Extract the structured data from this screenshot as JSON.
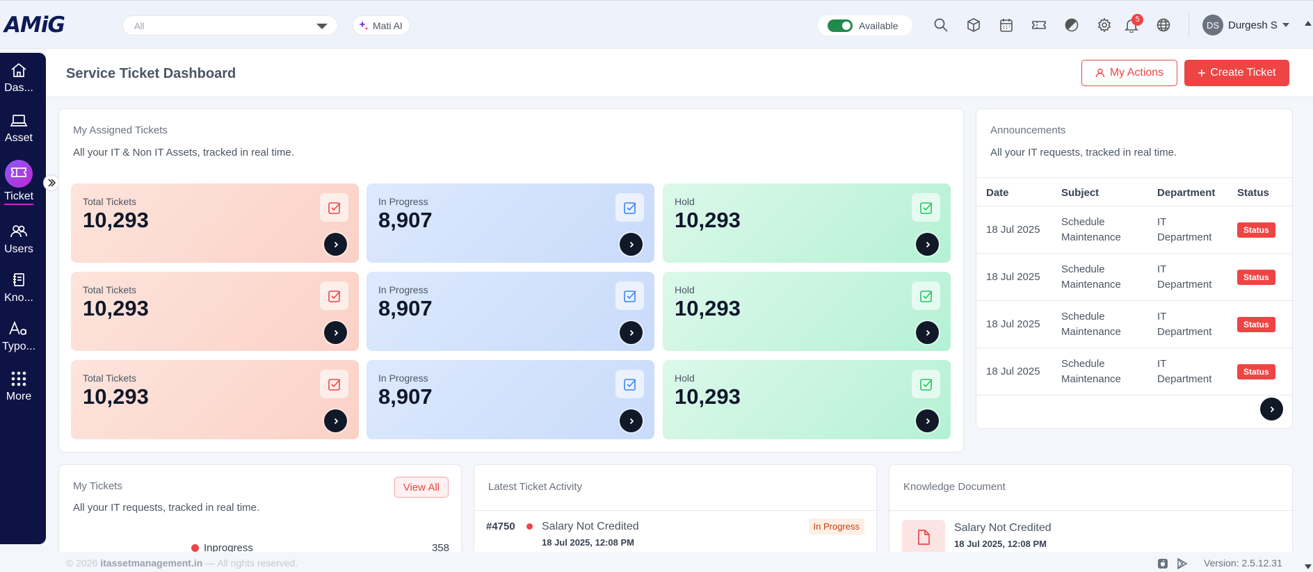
{
  "app": {
    "logo": "AMiG"
  },
  "topbar": {
    "scope_select": "All",
    "mati_ai": "Mati AI",
    "availability": "Available",
    "notifications_count": "5",
    "user_initials": "DS",
    "user_name": "Durgesh S"
  },
  "sidebar": {
    "items": [
      {
        "label": "Das..."
      },
      {
        "label": "Asset"
      },
      {
        "label": "Ticket"
      },
      {
        "label": "Users"
      },
      {
        "label": "Kno..."
      },
      {
        "label": "Typo..."
      },
      {
        "label": "More"
      }
    ]
  },
  "header": {
    "title": "Service Ticket Dashboard",
    "my_actions": "My Actions",
    "create_ticket": "Create Ticket"
  },
  "assigned": {
    "title": "My Assigned Tickets",
    "subtitle": "All your IT & Non IT Assets, tracked in real time.",
    "cards": [
      {
        "label": "Total Tickets",
        "value": "10,293",
        "color": "#ef4444"
      },
      {
        "label": "In Progress",
        "value": "8,907",
        "color": "#3b82f6"
      },
      {
        "label": "Hold",
        "value": "10,293",
        "color": "#22c55e"
      },
      {
        "label": "Total Tickets",
        "value": "10,293",
        "color": "#ef4444"
      },
      {
        "label": "In Progress",
        "value": "8,907",
        "color": "#3b82f6"
      },
      {
        "label": "Hold",
        "value": "10,293",
        "color": "#22c55e"
      },
      {
        "label": "Total Tickets",
        "value": "10,293",
        "color": "#ef4444"
      },
      {
        "label": "In Progress",
        "value": "8,907",
        "color": "#3b82f6"
      },
      {
        "label": "Hold",
        "value": "10,293",
        "color": "#22c55e"
      }
    ]
  },
  "announcements": {
    "title": "Announcements",
    "subtitle": "All your IT requests, tracked in real time.",
    "columns": [
      "Date",
      "Subject",
      "Department",
      "Status"
    ],
    "rows": [
      {
        "date": "18 Jul 2025",
        "subject_1": "Schedule",
        "subject_2": "Maintenance",
        "dept_1": "IT",
        "dept_2": "Department",
        "status": "Status"
      },
      {
        "date": "18 Jul 2025",
        "subject_1": "Schedule",
        "subject_2": "Maintenance",
        "dept_1": "IT",
        "dept_2": "Department",
        "status": "Status"
      },
      {
        "date": "18 Jul 2025",
        "subject_1": "Schedule",
        "subject_2": "Maintenance",
        "dept_1": "IT",
        "dept_2": "Department",
        "status": "Status"
      },
      {
        "date": "18 Jul 2025",
        "subject_1": "Schedule",
        "subject_2": "Maintenance",
        "dept_1": "IT",
        "dept_2": "Department",
        "status": "Status"
      }
    ]
  },
  "my_tickets": {
    "title": "My Tickets",
    "subtitle": "All your IT requests, tracked in real time.",
    "view_all": "View All",
    "legend_label": "Inprogress",
    "legend_value": "358"
  },
  "latest_activity": {
    "title": "Latest Ticket Activity",
    "ticket_id": "#4750",
    "ticket_title": "Salary Not Credited",
    "ticket_time": "18 Jul 2025, 12:08 PM",
    "ticket_status": "In Progress"
  },
  "knowledge": {
    "title": "Knowledge Document",
    "doc_title": "Salary Not Credited",
    "doc_time": "18 Jul 2025, 12:08 PM"
  },
  "footer": {
    "copyright_prefix": "© 2026",
    "site": "itassetmanagement.in",
    "copyright_suffix": "— All rights reserved.",
    "version": "Version: 2.5.12.31"
  },
  "colors": {
    "accent": "#ef4444",
    "sidebar": "#0e1345"
  }
}
